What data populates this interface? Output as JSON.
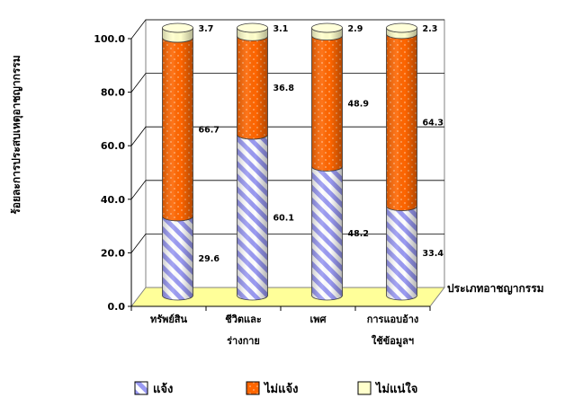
{
  "chart_data": {
    "type": "bar",
    "stacked": true,
    "style": "3d-cylinder",
    "ylabel": "ร้อยละการประสบเหตุอาชญากรรม",
    "xlabel": "ประเภทอาชญากรรม",
    "ylim": [
      0,
      100
    ],
    "yticks": [
      "0.0",
      "20.0",
      "40.0",
      "60.0",
      "80.0",
      "100.0"
    ],
    "categories": [
      [
        "ทรัพย์สิน"
      ],
      [
        "ชีวิตและ",
        "ร่างกาย"
      ],
      [
        "เพศ"
      ],
      [
        "การแอบอ้าง",
        "ใช้ข้อมูลฯ"
      ]
    ],
    "series": [
      {
        "name": "แจ้ง",
        "values": [
          29.6,
          60.1,
          48.2,
          33.4
        ],
        "labels": [
          "29.6",
          "60.1",
          "48.2",
          "33.4"
        ],
        "color": "#9999ff",
        "pattern": "diagonal-stripes"
      },
      {
        "name": "ไม่แจ้ง",
        "values": [
          66.7,
          36.8,
          48.9,
          64.3
        ],
        "labels": [
          "66.7",
          "36.8",
          "48.9",
          "64.3"
        ],
        "color": "#ff6600",
        "pattern": "dots"
      },
      {
        "name": "ไม่แน่ใจ",
        "values": [
          3.7,
          3.1,
          2.9,
          2.3
        ],
        "labels": [
          "3.7",
          "3.1",
          "2.9",
          "2.3"
        ],
        "color": "#ffffcc",
        "pattern": "solid"
      }
    ],
    "grid": true,
    "legend_position": "bottom"
  }
}
